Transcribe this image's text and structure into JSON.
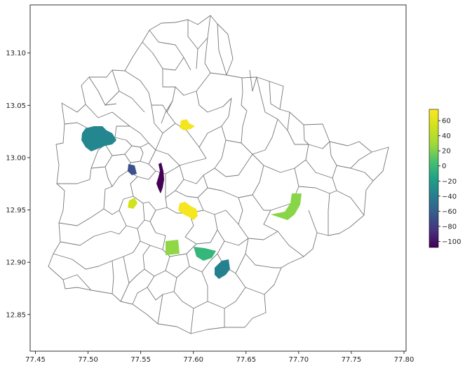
{
  "chart_data": {
    "type": "choropleth",
    "title": "",
    "xlabel": "",
    "ylabel": "",
    "xlim": [
      77.445,
      77.802
    ],
    "ylim": [
      12.815,
      13.146
    ],
    "x_ticks": [
      "77.45",
      "77.50",
      "77.55",
      "77.60",
      "77.65",
      "77.70",
      "77.75",
      "77.80"
    ],
    "y_ticks": [
      "12.85",
      "12.90",
      "12.95",
      "13.00",
      "13.05",
      "13.10"
    ],
    "x_tick_values": [
      77.45,
      77.5,
      77.55,
      77.6,
      77.65,
      77.7,
      77.75,
      77.8
    ],
    "y_tick_values": [
      12.85,
      12.9,
      12.95,
      13.0,
      13.05,
      13.1
    ],
    "colormap": "viridis",
    "colorbar_range": [
      -108,
      75
    ],
    "colorbar_ticks": [
      "60",
      "40",
      "20",
      "0",
      "−20",
      "−40",
      "−60",
      "−80",
      "−100"
    ],
    "colorbar_tick_values": [
      60,
      40,
      20,
      0,
      -20,
      -40,
      -60,
      -80,
      -100
    ],
    "grid": false,
    "boundary_color": "#777777",
    "highlighted_regions": [
      {
        "lon": 77.507,
        "lat": 13.02,
        "value": -33
      },
      {
        "lon": 77.571,
        "lat": 12.985,
        "value": -108
      },
      {
        "lon": 77.543,
        "lat": 12.991,
        "value": -60
      },
      {
        "lon": 77.592,
        "lat": 13.034,
        "value": 73
      },
      {
        "lon": 77.543,
        "lat": 12.958,
        "value": 62
      },
      {
        "lon": 77.597,
        "lat": 12.951,
        "value": 72
      },
      {
        "lon": 77.69,
        "lat": 12.956,
        "value": 42
      },
      {
        "lon": 77.578,
        "lat": 12.917,
        "value": 48
      },
      {
        "lon": 77.611,
        "lat": 12.91,
        "value": 22
      },
      {
        "lon": 77.628,
        "lat": 12.897,
        "value": -32
      }
    ]
  }
}
